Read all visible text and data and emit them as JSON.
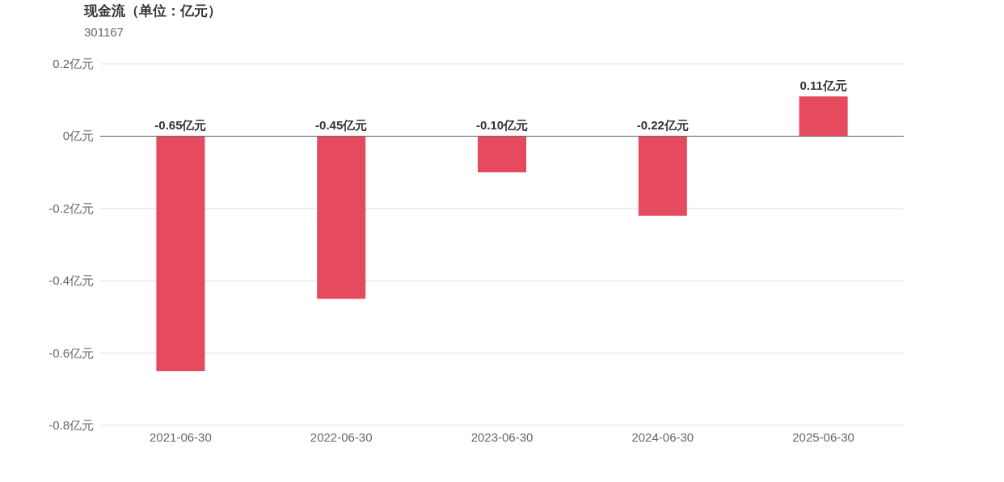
{
  "chart_data": {
    "type": "bar",
    "title": "现金流（单位：亿元）",
    "subtitle": "301167",
    "categories": [
      "2021-06-30",
      "2022-06-30",
      "2023-06-30",
      "2024-06-30",
      "2025-06-30"
    ],
    "values": [
      -0.65,
      -0.45,
      -0.1,
      -0.22,
      0.11
    ],
    "value_labels": [
      "-0.65亿元",
      "-0.45亿元",
      "-0.10亿元",
      "-0.22亿元",
      "0.11亿元"
    ],
    "color": "#e64a5e",
    "ylim": [
      -0.8,
      0.2
    ],
    "yticks": [
      {
        "value": 0.2,
        "label": "0.2亿元"
      },
      {
        "value": 0,
        "label": "0亿元"
      },
      {
        "value": -0.2,
        "label": "-0.2亿元"
      },
      {
        "value": -0.4,
        "label": "-0.4亿元"
      },
      {
        "value": -0.6,
        "label": "-0.6亿元"
      },
      {
        "value": -0.8,
        "label": "-0.8亿元"
      }
    ],
    "grid": "y"
  }
}
